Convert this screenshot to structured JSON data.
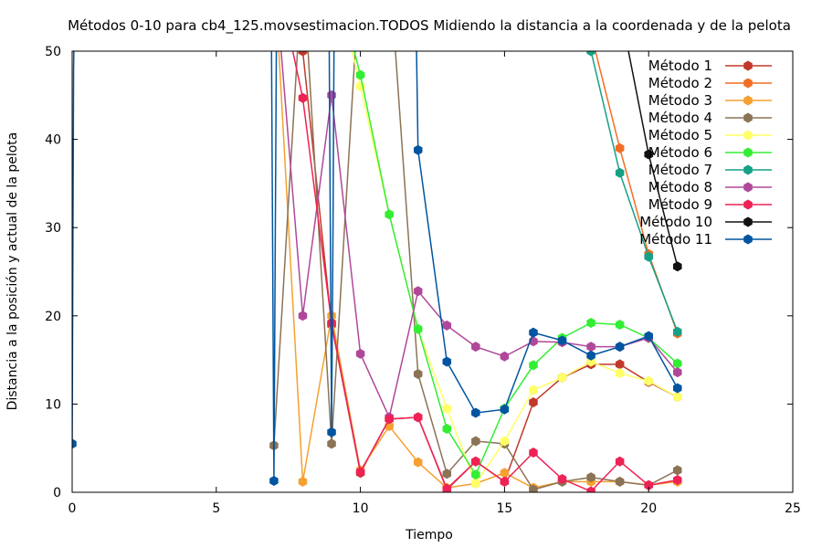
{
  "chart_data": {
    "type": "line",
    "title": "Métodos 0-10 para cb4_125.movsestimacion.TODOS Midiendo la distancia a la coordenada y de la pelota",
    "xlabel": "Tiempo",
    "ylabel": "Distancia a la posición y actual de la pelota",
    "xlim": [
      0,
      25
    ],
    "ylim": [
      0,
      50
    ],
    "xticks": [
      0,
      5,
      10,
      15,
      20,
      25
    ],
    "yticks": [
      0,
      10,
      20,
      30,
      40,
      50
    ],
    "grid": false,
    "legend_position": "top-right",
    "series": [
      {
        "name": "Método 1",
        "color": "#c0392b",
        "points": [
          [
            7,
            60
          ],
          [
            8,
            50
          ],
          [
            9,
            19
          ],
          [
            10,
            2.2
          ],
          [
            11,
            8.3
          ],
          [
            12,
            8.5
          ],
          [
            13,
            0.3
          ],
          [
            14,
            3.5
          ],
          [
            15,
            1.2
          ],
          [
            16,
            10.2
          ],
          [
            17,
            13
          ],
          [
            18,
            14.5
          ],
          [
            19,
            14.5
          ],
          [
            20,
            12.5
          ],
          [
            21,
            10.8
          ]
        ]
      },
      {
        "name": "Método 2",
        "color": "#f46d25",
        "points": [
          [
            17,
            80
          ],
          [
            18,
            52
          ],
          [
            19,
            39
          ],
          [
            20,
            27
          ],
          [
            21,
            18
          ]
        ]
      },
      {
        "name": "Método 3",
        "color": "#f5a030",
        "points": [
          [
            7,
            60
          ],
          [
            8,
            1.2
          ],
          [
            9,
            20
          ],
          [
            10,
            2.5
          ],
          [
            11,
            7.5
          ],
          [
            12,
            3.4
          ],
          [
            13,
            0.5
          ],
          [
            14,
            1
          ],
          [
            15,
            2.2
          ],
          [
            16,
            0.5
          ],
          [
            17,
            1.2
          ],
          [
            18,
            1.2
          ],
          [
            19,
            1.2
          ],
          [
            20,
            0.8
          ],
          [
            21,
            1.2
          ]
        ]
      },
      {
        "name": "Método 4",
        "color": "#8b7355",
        "points": [
          [
            7,
            5.3
          ],
          [
            8,
            60
          ],
          [
            9,
            5.5
          ],
          [
            10,
            60
          ],
          [
            11,
            60
          ],
          [
            12,
            13.4
          ],
          [
            13,
            2.1
          ],
          [
            14,
            5.8
          ],
          [
            15,
            5.5
          ],
          [
            16,
            0.3
          ],
          [
            17,
            1.2
          ],
          [
            18,
            1.7
          ],
          [
            19,
            1.2
          ],
          [
            20,
            0.8
          ],
          [
            21,
            2.5
          ]
        ]
      },
      {
        "name": "Método 5",
        "color": "#ffff66",
        "points": [
          [
            9,
            60
          ],
          [
            10,
            46
          ],
          [
            11,
            31.5
          ],
          [
            12,
            18.5
          ],
          [
            13,
            9.5
          ],
          [
            14,
            1
          ],
          [
            15,
            5.8
          ],
          [
            16,
            11.6
          ],
          [
            17,
            13
          ],
          [
            18,
            14.8
          ],
          [
            19,
            13.5
          ],
          [
            20,
            12.6
          ],
          [
            21,
            10.8
          ]
        ]
      },
      {
        "name": "Método 6",
        "color": "#33ee33",
        "points": [
          [
            9,
            60
          ],
          [
            10,
            47.3
          ],
          [
            11,
            31.5
          ],
          [
            12,
            18.5
          ],
          [
            13,
            7.2
          ],
          [
            14,
            2
          ],
          [
            15,
            9.5
          ],
          [
            16,
            14.4
          ],
          [
            17,
            17.5
          ],
          [
            18,
            19.2
          ],
          [
            19,
            19
          ],
          [
            20,
            17.5
          ],
          [
            21,
            14.6
          ]
        ]
      },
      {
        "name": "Método 7",
        "color": "#16a085",
        "points": [
          [
            17,
            80
          ],
          [
            18,
            50
          ],
          [
            19,
            36.2
          ],
          [
            20,
            26.7
          ],
          [
            21,
            18.2
          ]
        ]
      },
      {
        "name": "Método 8",
        "color": "#b0489a",
        "points": [
          [
            7,
            60
          ],
          [
            8,
            20
          ],
          [
            9,
            45
          ],
          [
            10,
            15.7
          ],
          [
            11,
            8.5
          ],
          [
            12,
            22.8
          ],
          [
            13,
            18.9
          ],
          [
            14,
            16.5
          ],
          [
            15,
            15.4
          ],
          [
            16,
            17.1
          ],
          [
            17,
            17
          ],
          [
            18,
            16.5
          ],
          [
            19,
            16.5
          ],
          [
            20,
            17.5
          ],
          [
            21,
            13.6
          ]
        ]
      },
      {
        "name": "Método 9",
        "color": "#ee2255",
        "points": [
          [
            7,
            60
          ],
          [
            8,
            44.7
          ],
          [
            9,
            19.2
          ],
          [
            10,
            2.3
          ],
          [
            11,
            8.3
          ],
          [
            12,
            8.5
          ],
          [
            13,
            0.4
          ],
          [
            14,
            3.5
          ],
          [
            15,
            1.2
          ],
          [
            16,
            4.5
          ],
          [
            17,
            1.5
          ],
          [
            18,
            0.1
          ],
          [
            19,
            3.5
          ],
          [
            20,
            0.8
          ],
          [
            21,
            1.4
          ]
        ]
      },
      {
        "name": "Método 10",
        "color": "#111111",
        "points": [
          [
            19,
            55
          ],
          [
            20,
            38.3
          ],
          [
            21,
            25.6
          ]
        ]
      },
      {
        "name": "Método 11",
        "color": "#0055a0",
        "points": [
          [
            0,
            5.5
          ],
          [
            0.05,
            48
          ],
          [
            0.1,
            60
          ],
          [
            6.9,
            60
          ],
          [
            7,
            1.3
          ],
          [
            7.1,
            60
          ],
          [
            8.9,
            60
          ],
          [
            9,
            6.8
          ],
          [
            9.05,
            30
          ],
          [
            9.1,
            60
          ],
          [
            11.9,
            60
          ],
          [
            12,
            38.8
          ],
          [
            13,
            14.8
          ],
          [
            14,
            9
          ],
          [
            15,
            9.4
          ],
          [
            16,
            18.1
          ],
          [
            17,
            17.2
          ],
          [
            18,
            15.5
          ],
          [
            19,
            16.5
          ],
          [
            20,
            17.7
          ],
          [
            21,
            11.8
          ]
        ]
      }
    ]
  }
}
